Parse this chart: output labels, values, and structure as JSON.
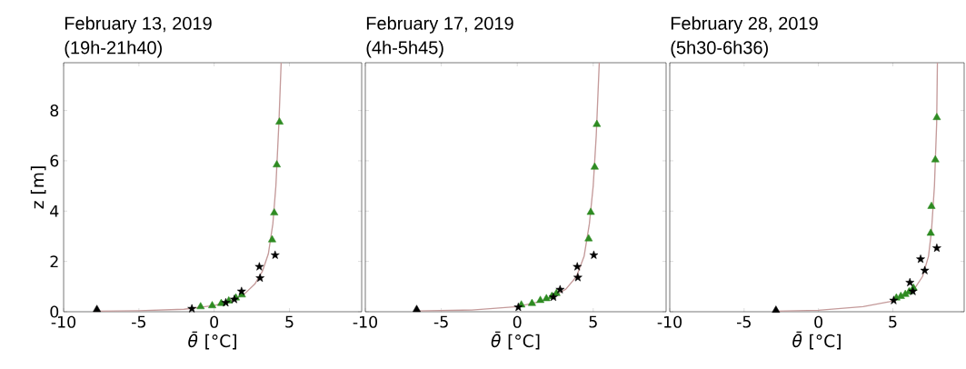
{
  "chart_data": [
    {
      "type": "line",
      "title": "February 13, 2019",
      "subtitle": "(19h-21h40)",
      "xlabel": "*θ̄* [°C]",
      "ylabel": "z [m]",
      "xlim": [
        -10,
        9.8
      ],
      "ylim": [
        0,
        9.9
      ],
      "xticks": [
        -10,
        -5,
        0,
        5
      ],
      "yticks": [
        0,
        2,
        4,
        6,
        8
      ],
      "grid": false,
      "series": [
        {
          "color": "#c49a9a",
          "line_style": "solid",
          "marker": "none",
          "x": [
            -7.8,
            -5,
            -2,
            0,
            1,
            2,
            2.7,
            3.2,
            3.6,
            3.9,
            4.1,
            4.3,
            4.45
          ],
          "values": [
            0.02,
            0.04,
            0.1,
            0.25,
            0.4,
            0.7,
            1.1,
            1.6,
            2.3,
            3.5,
            5,
            7.5,
            9.9
          ]
        },
        {
          "type": "scatter",
          "color": "#2e8b22",
          "marker": "triangle",
          "x": [
            4.34,
            4.16,
            3.99,
            3.85,
            -0.9,
            -0.13,
            0.47,
            0.97,
            1.44,
            1.84
          ],
          "values": [
            7.54,
            5.84,
            3.93,
            2.86,
            0.2,
            0.24,
            0.33,
            0.43,
            0.55,
            0.67
          ]
        },
        {
          "type": "scatter",
          "color": "#000000",
          "marker": "star",
          "x": [
            -1.48,
            3.05,
            3.0,
            4.05,
            1.82,
            1.34,
            0.77
          ],
          "values": [
            0.12,
            1.34,
            1.79,
            2.25,
            0.81,
            0.49,
            0.36
          ]
        },
        {
          "type": "scatter",
          "color": "#000000",
          "marker": "triangle",
          "x": [
            -7.79
          ],
          "values": [
            0.09
          ]
        }
      ]
    },
    {
      "type": "line",
      "title": "February 17, 2019",
      "subtitle": "(4h-5h45)",
      "xlabel": "*θ̄* [°C]",
      "xlim": [
        -10,
        9.8
      ],
      "ylim": [
        0,
        9.9
      ],
      "xticks": [
        -10,
        -5,
        0,
        5
      ],
      "yticks": [
        0,
        2,
        4,
        6,
        8
      ],
      "tick_labels": "x",
      "grid": false,
      "series": [
        {
          "color": "#c49a9a",
          "line_style": "solid",
          "marker": "none",
          "x": [
            -6.6,
            -3,
            0,
            1.5,
            2.5,
            3.2,
            3.9,
            4.4,
            4.75,
            5.0,
            5.2,
            5.4
          ],
          "values": [
            0.03,
            0.07,
            0.2,
            0.4,
            0.65,
            0.9,
            1.4,
            2.2,
            3.5,
            5,
            7,
            9.9
          ]
        },
        {
          "type": "scatter",
          "color": "#2e8b22",
          "marker": "triangle",
          "x": [
            5.24,
            5.1,
            4.84,
            4.7,
            0.27,
            0.97,
            1.52,
            1.92,
            2.28,
            2.58
          ],
          "values": [
            7.45,
            5.75,
            3.95,
            2.9,
            0.27,
            0.33,
            0.45,
            0.52,
            0.61,
            0.73
          ]
        },
        {
          "type": "scatter",
          "color": "#000000",
          "marker": "star",
          "x": [
            0.07,
            3.95,
            3.99,
            5.04,
            2.82,
            2.38
          ],
          "values": [
            0.18,
            1.79,
            1.36,
            2.25,
            0.88,
            0.58
          ]
        },
        {
          "type": "scatter",
          "color": "#000000",
          "marker": "triangle",
          "x": [
            -6.62
          ],
          "values": [
            0.09
          ]
        }
      ]
    },
    {
      "type": "line",
      "title": "February 28, 2019",
      "subtitle": "(5h30-6h36)",
      "xlabel": "*θ̄* [°C]",
      "xlim": [
        -10,
        9.8
      ],
      "ylim": [
        0,
        9.9
      ],
      "xticks": [
        -10,
        -5,
        0,
        5
      ],
      "yticks": [
        0,
        2,
        4,
        6,
        8
      ],
      "tick_labels": "x",
      "grid": false,
      "series": [
        {
          "color": "#c49a9a",
          "line_style": "solid",
          "marker": "none",
          "x": [
            -2.9,
            0,
            3,
            4.8,
            5.8,
            6.5,
            7,
            7.4,
            7.6,
            7.8,
            7.95,
            8.0
          ],
          "values": [
            0.02,
            0.06,
            0.2,
            0.4,
            0.65,
            0.95,
            1.4,
            2.2,
            3.2,
            5,
            7.5,
            9.9
          ]
        },
        {
          "type": "scatter",
          "color": "#2e8b22",
          "marker": "triangle",
          "x": [
            7.96,
            7.86,
            7.6,
            7.55,
            5.24,
            5.54,
            5.84,
            6.1,
            6.39
          ],
          "values": [
            7.72,
            6.04,
            4.19,
            3.12,
            0.55,
            0.61,
            0.69,
            0.79,
            0.94
          ]
        },
        {
          "type": "scatter",
          "color": "#000000",
          "marker": "star",
          "x": [
            5.06,
            6.15,
            7.15,
            6.87,
            7.96,
            6.35
          ],
          "values": [
            0.45,
            1.16,
            1.64,
            2.09,
            2.53,
            0.81
          ]
        },
        {
          "type": "scatter",
          "color": "#000000",
          "marker": "triangle",
          "x": [
            -2.86
          ],
          "values": [
            0.06
          ]
        }
      ]
    }
  ]
}
